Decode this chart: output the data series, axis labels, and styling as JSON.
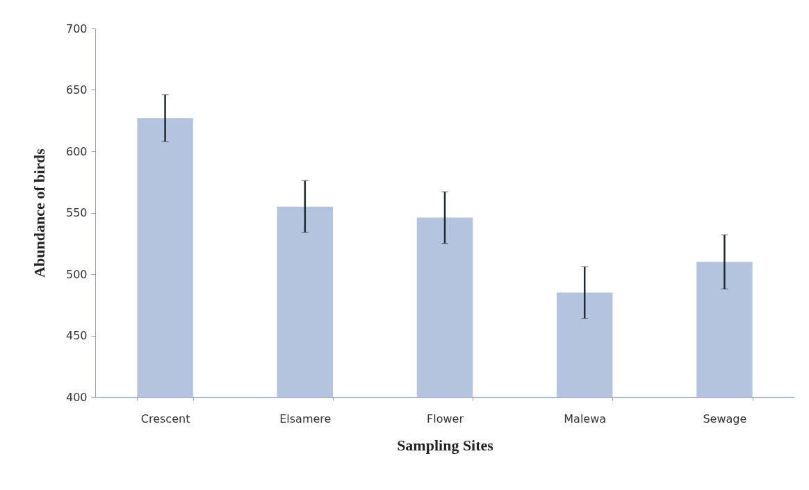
{
  "chart_data": {
    "type": "bar",
    "xlabel": "Sampling Sites",
    "ylabel": "Abundance of birds",
    "categories": [
      "Crescent",
      "Elsamere",
      "Flower",
      "Malewa",
      "Sewage"
    ],
    "values": [
      627,
      555,
      546,
      485,
      510
    ],
    "errors": [
      19,
      21,
      21,
      21,
      22
    ],
    "color": "#b4c4de",
    "ylim": [
      400,
      700
    ],
    "yticks": [
      400,
      450,
      500,
      550,
      600,
      650,
      700
    ],
    "grid": false
  }
}
